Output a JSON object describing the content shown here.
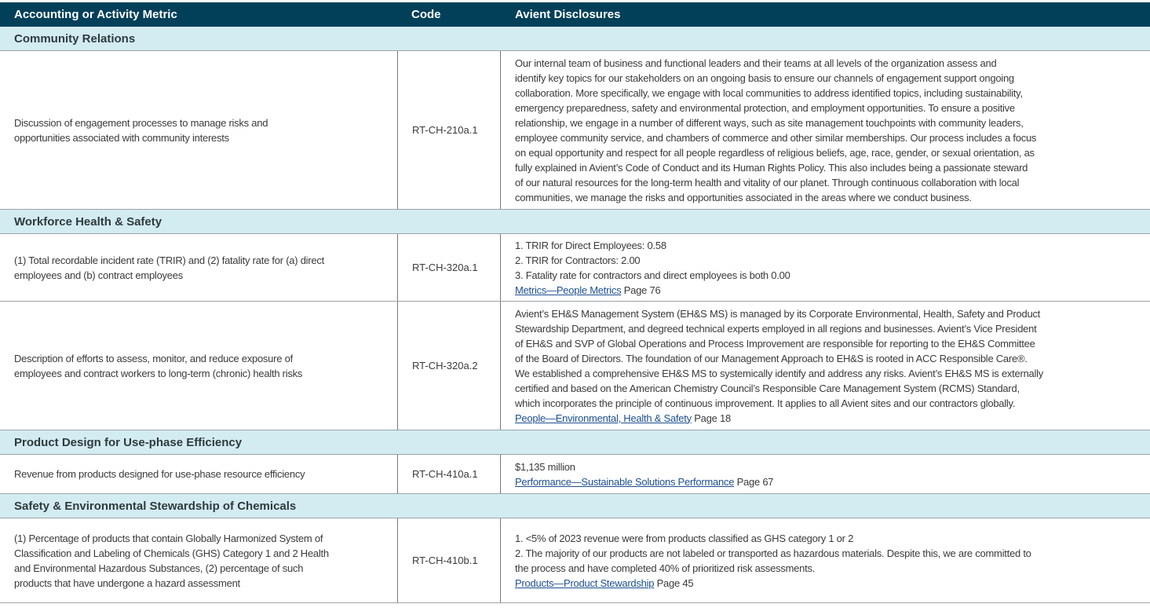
{
  "header": {
    "metric": "Accounting or Activity Metric",
    "code": "Code",
    "disclosures": "Avient Disclosures"
  },
  "colors": {
    "header_bg": "#02405a",
    "section_bg": "#d3ecf1",
    "link": "#1d4f91"
  },
  "sections": [
    {
      "title": "Community Relations",
      "rows": [
        {
          "height": 202,
          "metric": [
            "Discussion of engagement processes to manage risks and",
            "opportunities associated with community interests"
          ],
          "code": "RT-CH-210a.1",
          "disclosure": [
            "Our internal team of business and functional leaders and their teams at all levels of the organization assess and",
            "identify key topics for our stakeholders on an ongoing basis to ensure our channels of engagement support ongoing",
            "collaboration. More specifically, we engage with local communities to address identified topics, including sustainability,",
            "emergency preparedness, safety and environmental protection, and employment opportunities. To ensure a positive",
            "relationship, we engage in a number of different ways, such as site management touchpoints with community leaders,",
            "employee community service, and chambers of commerce and other similar memberships. Our process includes a focus",
            "on equal opportunity and respect for all people regardless of religious beliefs, age, race, gender, or sexual orientation, as",
            "fully explained in Avient’s Code of Conduct and its Human Rights Policy. This also includes being a passionate steward",
            "of our natural resources for the long-term health and vitality of our planet. Through continuous collaboration with local",
            "communities, we manage the risks and opportunities associated in the areas where we conduct business."
          ],
          "link": null
        }
      ]
    },
    {
      "title": "Workforce Health & Safety",
      "rows": [
        {
          "height": 86,
          "metric": [
            "(1) Total recordable incident rate (TRIR) and (2) fatality rate for (a) direct",
            "employees and (b) contract employees"
          ],
          "code": "RT-CH-320a.1",
          "disclosure": [
            "1. TRIR for Direct Employees: 0.58",
            "2. TRIR for Contractors: 2.00",
            "3. Fatality rate for contractors and direct employees is both 0.00"
          ],
          "link": {
            "text": "Metrics—People Metrics",
            "page": "Page 76"
          }
        },
        {
          "height": 164,
          "metric": [
            "Description of efforts to assess, monitor, and reduce exposure of",
            "employees and contract workers to long-term (chronic) health risks"
          ],
          "code": "RT-CH-320a.2",
          "disclosure": [
            "Avient’s EH&S Management System (EH&S MS) is managed by its Corporate Environmental, Health, Safety and Product",
            "Stewardship Department, and degreed technical experts employed in all regions and businesses. Avient’s Vice President",
            "of EH&S and SVP of Global Operations and Process Improvement are responsible for reporting to the EH&S Committee",
            "of the Board of Directors. The foundation of our Management Approach to EH&S is rooted in ACC Responsible Care®.",
            "We established a comprehensive EH&S MS to systemically identify and address any risks. Avient’s EH&S MS is externally",
            "certified and based on the American Chemistry Council’s Responsible Care Management System (RCMS) Standard,",
            "which incorporates the principle of continuous improvement. It applies to all Avient sites and our contractors globally."
          ],
          "link": {
            "text": "People—Environmental, Health & Safety",
            "page": "Page 18"
          }
        }
      ]
    },
    {
      "title": "Product Design for Use-phase Efficiency",
      "rows": [
        {
          "height": 50,
          "metric": [
            "Revenue from products designed for use-phase resource efficiency"
          ],
          "code": "RT-CH-410a.1",
          "disclosure": [
            "$1,135 million"
          ],
          "link": {
            "text": "Performance—Sustainable Solutions Performance",
            "page": "Page 67"
          }
        }
      ]
    },
    {
      "title": "Safety & Environmental Stewardship of Chemicals",
      "rows": [
        {
          "height": 108,
          "metric": [
            "(1) Percentage of products that contain Globally Harmonized System of",
            "Classification and Labeling of Chemicals (GHS) Category 1 and 2 Health",
            "and Environmental Hazardous Substances, (2) percentage of such",
            "products that have undergone a hazard assessment"
          ],
          "code": "RT-CH-410b.1",
          "disclosure": [
            "1. <5% of 2023 revenue were from products classified as GHS category 1 or 2",
            "2. The majority of our products are not labeled or transported as hazardous materials. Despite this, we are committed to",
            "the process and have completed 40% of prioritized risk assessments."
          ],
          "link": {
            "text": "Products—Product Stewardship",
            "page": "Page 45"
          }
        }
      ]
    }
  ]
}
